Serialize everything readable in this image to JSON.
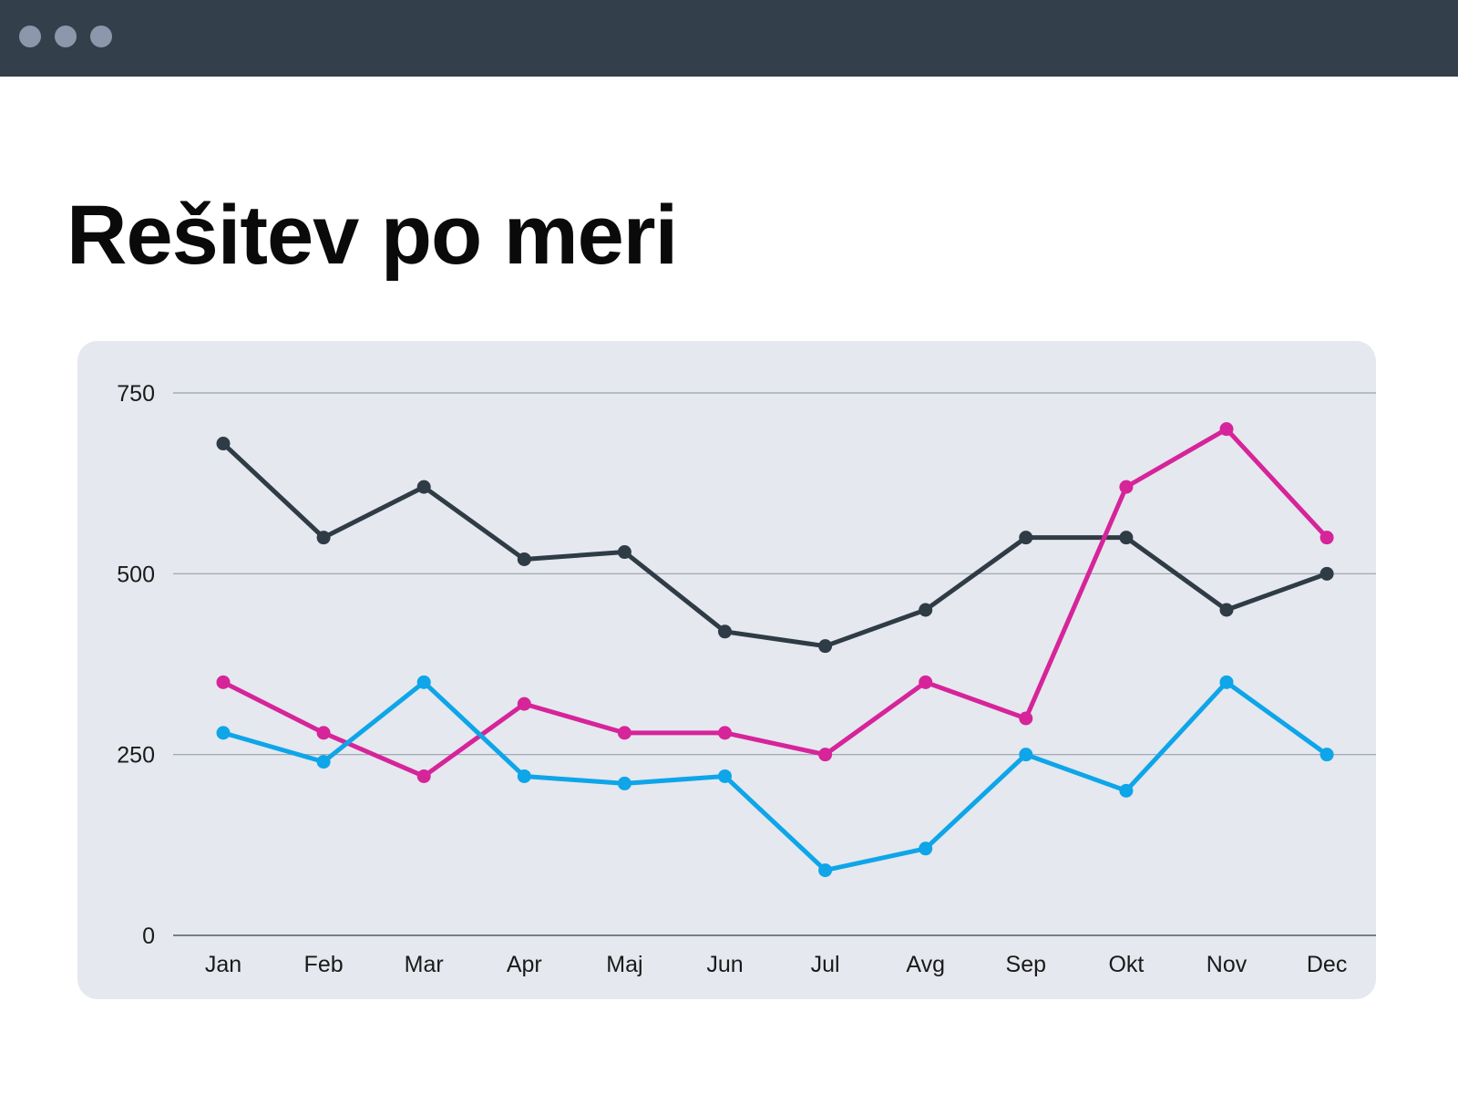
{
  "window": {
    "controls": [
      "window-dot",
      "window-dot",
      "window-dot"
    ],
    "bar_color": "#333f4a",
    "dot_color": "#8c97ab"
  },
  "page": {
    "title": "Rešitev po meri"
  },
  "chart_data": {
    "type": "line",
    "title": "",
    "xlabel": "",
    "ylabel": "",
    "categories": [
      "Jan",
      "Feb",
      "Mar",
      "Apr",
      "Maj",
      "Jun",
      "Jul",
      "Avg",
      "Sep",
      "Okt",
      "Nov",
      "Dec"
    ],
    "yticks": [
      "0",
      "250",
      "500",
      "750"
    ],
    "ylim": [
      0,
      750
    ],
    "grid": true,
    "legend": "none",
    "series": [
      {
        "color": "#2f3b45",
        "values": [
          680,
          550,
          620,
          520,
          530,
          420,
          400,
          450,
          550,
          550,
          450,
          500
        ]
      },
      {
        "color": "#d6249a",
        "values": [
          350,
          280,
          220,
          320,
          280,
          280,
          250,
          350,
          300,
          620,
          700,
          550
        ]
      },
      {
        "color": "#0ea5e9",
        "values": [
          280,
          240,
          350,
          220,
          210,
          220,
          90,
          120,
          250,
          200,
          350,
          250
        ]
      }
    ]
  }
}
